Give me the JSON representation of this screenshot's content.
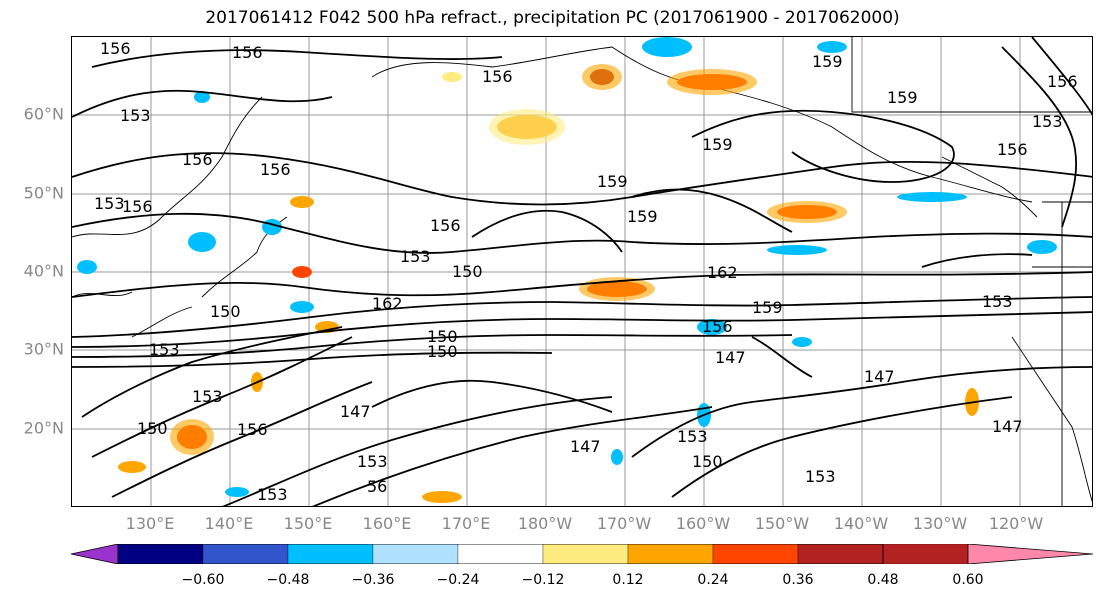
{
  "title": "2017061412 F042 500 hPa refract., precipitation PC (2017061900 - 2017062000)",
  "map": {
    "lat_labels": [
      "60°N",
      "50°N",
      "40°N",
      "30°N",
      "20°N"
    ],
    "lon_labels": [
      "130°E",
      "140°E",
      "150°E",
      "160°E",
      "170°E",
      "180°W",
      "170°W",
      "160°W",
      "150°W",
      "140°W",
      "130°W",
      "120°W"
    ],
    "contour_labels": [
      "156",
      "156",
      "156",
      "159",
      "156",
      "159",
      "153",
      "156",
      "159",
      "156",
      "153",
      "156",
      "156",
      "159",
      "153",
      "159",
      "156",
      "153",
      "150",
      "162",
      "150",
      "162",
      "159",
      "153",
      "150",
      "150",
      "156",
      "153",
      "147",
      "147",
      "150",
      "153",
      "147",
      "147",
      "147",
      "156",
      "153",
      "153",
      "150",
      "153",
      "153",
      "56"
    ]
  },
  "colorbar": {
    "colors": [
      "#9933cc",
      "#000080",
      "#3355cc",
      "#00bfff",
      "#b0e2ff",
      "#ffffff",
      "#ffec80",
      "#ffa500",
      "#ff4500",
      "#b22222",
      "#ff88aa"
    ],
    "ticks": [
      "−0.60",
      "−0.48",
      "−0.36",
      "−0.24",
      "−0.12",
      "0.12",
      "0.24",
      "0.36",
      "0.48",
      "0.60"
    ]
  }
}
